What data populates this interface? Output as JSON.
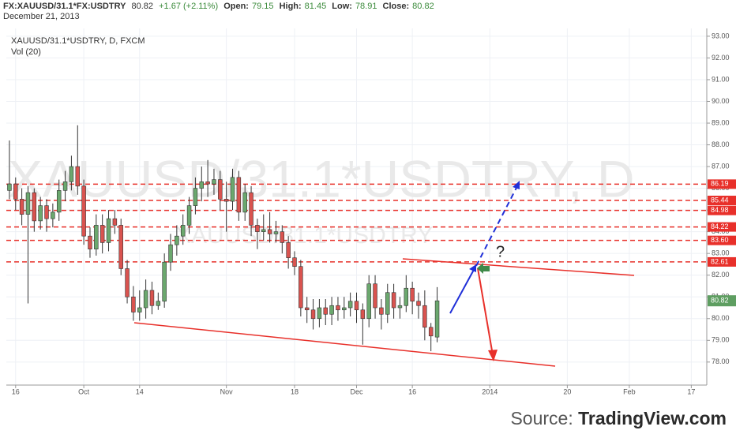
{
  "header": {
    "symbol": "FX:XAUUSD/31.1*FX:USDTRY",
    "change": "+1.67 (+2.11%)",
    "open_label": "Open:",
    "high_label": "High:",
    "low_label": "Low:",
    "close_label": "Close:",
    "date": "December 21, 2013"
  },
  "chart_data": {
    "type": "candlestick",
    "title": "XAUUSD/31.1*USDTRY, D, FXCM",
    "subtitle": "Vol (20)",
    "watermark": "XAUUSD/31.1*USDTRY, D",
    "watermark_small": "XAUUSD/31.1*USDTRY",
    "open": [
      85.9,
      86.2,
      85.5,
      84.8,
      85.8,
      84.5,
      85.2,
      84.6,
      84.9,
      85.9,
      86.3,
      87.0,
      86.1,
      83.8,
      83.2,
      84.3,
      83.5,
      84.6,
      84.3,
      82.3,
      81.0,
      80.3,
      80.5,
      81.3,
      80.6,
      80.8,
      82.6,
      83.4,
      83.8,
      84.3,
      85.2,
      86.0,
      86.3,
      86.2,
      86.4,
      85.5,
      85.4,
      86.5,
      84.9,
      85.8,
      84.3,
      84.0,
      84.1,
      83.9,
      84.0,
      83.5,
      82.8,
      82.4,
      80.5,
      80.4,
      80.0,
      80.5,
      80.2,
      80.6,
      80.4,
      80.5,
      80.8,
      80.4,
      80.0,
      81.6,
      80.5,
      80.2,
      81.2,
      80.5,
      80.6,
      81.4,
      80.8,
      80.6,
      79.6,
      79.15
    ],
    "high": [
      88.2,
      86.5,
      86.0,
      86.1,
      86.0,
      85.6,
      85.5,
      85.3,
      86.4,
      86.8,
      87.5,
      88.9,
      86.4,
      84.2,
      84.8,
      84.8,
      85.0,
      85.0,
      84.6,
      82.7,
      81.5,
      81.3,
      81.8,
      81.7,
      81.2,
      83.0,
      83.9,
      84.3,
      84.8,
      85.6,
      86.5,
      87.0,
      87.3,
      86.9,
      86.8,
      86.3,
      86.9,
      86.8,
      86.2,
      86.1,
      84.6,
      84.8,
      84.9,
      84.5,
      84.3,
      83.8,
      83.1,
      82.7,
      81.0,
      80.9,
      80.9,
      80.9,
      81.0,
      81.0,
      81.0,
      81.2,
      81.2,
      80.7,
      82.0,
      82.0,
      80.9,
      81.6,
      81.6,
      81.0,
      82.0,
      81.7,
      81.2,
      81.3,
      79.8,
      81.45
    ],
    "low": [
      85.5,
      85.0,
      84.3,
      80.7,
      84.0,
      84.1,
      84.0,
      84.2,
      84.5,
      85.4,
      85.9,
      85.7,
      83.4,
      82.8,
      82.9,
      83.0,
      83.1,
      83.9,
      82.0,
      80.7,
      79.9,
      79.9,
      80.0,
      80.2,
      80.4,
      80.5,
      82.2,
      82.9,
      83.4,
      83.9,
      84.8,
      85.4,
      85.6,
      85.7,
      85.0,
      84.0,
      85.0,
      84.5,
      84.5,
      83.8,
      83.2,
      83.6,
      83.5,
      83.5,
      83.0,
      82.3,
      82.0,
      80.1,
      79.8,
      79.5,
      79.6,
      79.7,
      79.7,
      79.9,
      80.0,
      80.1,
      79.8,
      78.8,
      79.6,
      80.0,
      79.5,
      79.8,
      80.0,
      80.0,
      80.3,
      80.2,
      80.0,
      79.0,
      78.5,
      78.91
    ],
    "close": [
      86.2,
      85.5,
      84.8,
      85.8,
      84.5,
      85.2,
      84.6,
      84.9,
      85.9,
      86.3,
      87.0,
      86.1,
      83.8,
      83.2,
      84.3,
      83.5,
      84.6,
      84.3,
      82.3,
      81.0,
      80.3,
      80.5,
      81.3,
      80.6,
      80.8,
      82.6,
      83.4,
      83.8,
      84.3,
      85.2,
      86.0,
      86.3,
      86.2,
      86.4,
      85.5,
      85.4,
      86.5,
      84.9,
      85.8,
      84.3,
      84.0,
      84.1,
      83.9,
      84.0,
      83.5,
      82.8,
      82.4,
      80.5,
      80.4,
      80.0,
      80.5,
      80.2,
      80.6,
      80.4,
      80.5,
      80.8,
      80.4,
      80.0,
      81.6,
      80.5,
      80.2,
      81.2,
      80.5,
      80.6,
      81.4,
      80.8,
      80.6,
      79.6,
      79.2,
      80.82
    ],
    "up_color": "#6ba86e",
    "down_color": "#d9534f",
    "xlim": [
      -0.5,
      112.5
    ],
    "xticks": [
      {
        "value": 1,
        "label": "16"
      },
      {
        "value": 12,
        "label": "Oct"
      },
      {
        "value": 21,
        "label": "14"
      },
      {
        "value": 35,
        "label": "Nov"
      },
      {
        "value": 46,
        "label": "18"
      },
      {
        "value": 56,
        "label": "Dec"
      },
      {
        "value": 65,
        "label": "16"
      },
      {
        "value": 77.5,
        "label": "2014"
      },
      {
        "value": 90,
        "label": "20"
      },
      {
        "value": 100,
        "label": "Feb"
      },
      {
        "value": 110,
        "label": "17"
      }
    ],
    "ylim": [
      76.94,
      93.36
    ],
    "yticks": [
      {
        "value": 78,
        "label": "78.00"
      },
      {
        "value": 79,
        "label": "79.00"
      },
      {
        "value": 80,
        "label": "80.00"
      },
      {
        "value": 81,
        "label": "81.00"
      },
      {
        "value": 82,
        "label": "82.00"
      },
      {
        "value": 83,
        "label": "83.00"
      },
      {
        "value": 84,
        "label": "84.00"
      },
      {
        "value": 85,
        "label": "85.00"
      },
      {
        "value": 86,
        "label": "86.00"
      },
      {
        "value": 87,
        "label": "87.00"
      },
      {
        "value": 88,
        "label": "88.00"
      },
      {
        "value": 89,
        "label": "89.00"
      },
      {
        "value": 90,
        "label": "90.00"
      },
      {
        "value": 91,
        "label": "91.00"
      },
      {
        "value": 92,
        "label": "92.00"
      },
      {
        "value": 93,
        "label": "93.00"
      }
    ],
    "grid": true,
    "levels": {
      "values": [
        86.19,
        85.44,
        84.98,
        84.22,
        83.6,
        82.61
      ],
      "labels": [
        "86.19",
        "85.44",
        "84.98",
        "84.22",
        "83.60",
        "82.61"
      ],
      "color": "#e8302a"
    },
    "last_price_label": "80.82",
    "last_price_color": "#5e9e61",
    "annotation": "?"
  },
  "source": {
    "prefix": "Source:",
    "brand": "TradingView.com"
  }
}
